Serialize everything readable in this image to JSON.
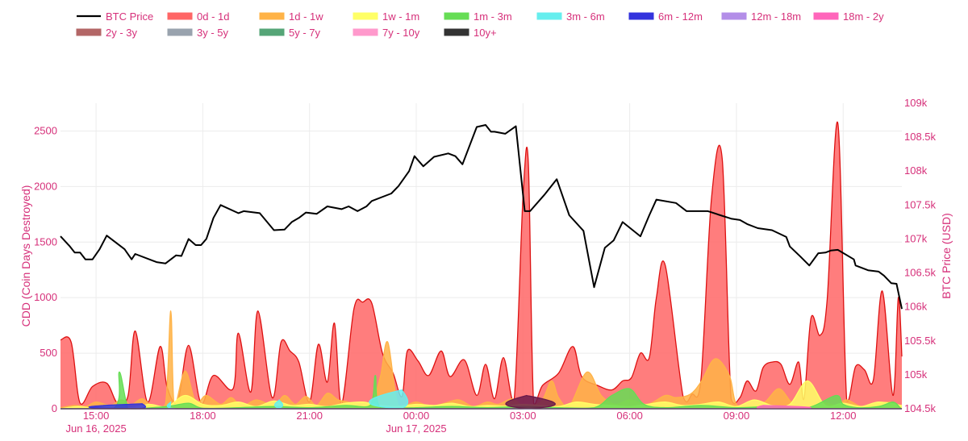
{
  "chart_data": {
    "type": "area",
    "left_axis": {
      "label": "CDD (Coin Days Destroyed)",
      "range": [
        0,
        2750
      ],
      "ticks": [
        "0",
        "500",
        "1000",
        "1500",
        "2000",
        "2500"
      ]
    },
    "right_axis": {
      "label": "BTC Price (USD)",
      "range": [
        104500,
        109000
      ],
      "ticks": [
        "104.5k",
        "105k",
        "105.5k",
        "106k",
        "106.5k",
        "107k",
        "107.5k",
        "108k",
        "108.5k",
        "109k"
      ]
    },
    "x_axis": {
      "range_hours": [
        14.0,
        37.65
      ],
      "ticks": [
        {
          "hour": 15,
          "label": "15:00",
          "sublabel": "Jun 16, 2025"
        },
        {
          "hour": 18,
          "label": "18:00",
          "sublabel": ""
        },
        {
          "hour": 21,
          "label": "21:00",
          "sublabel": ""
        },
        {
          "hour": 24,
          "label": "00:00",
          "sublabel": "Jun 17, 2025"
        },
        {
          "hour": 27,
          "label": "03:00",
          "sublabel": ""
        },
        {
          "hour": 30,
          "label": "06:00",
          "sublabel": ""
        },
        {
          "hour": 33,
          "label": "09:00",
          "sublabel": ""
        },
        {
          "hour": 36,
          "label": "12:00",
          "sublabel": ""
        }
      ]
    },
    "grid": true,
    "legend_position": "top",
    "legend": [
      {
        "name": "BTC Price",
        "color": "#000000",
        "kind": "line"
      },
      {
        "name": "0d - 1d",
        "color": "#ff6666",
        "kind": "area"
      },
      {
        "name": "1d - 1w",
        "color": "#ffb347",
        "kind": "area"
      },
      {
        "name": "1w - 1m",
        "color": "#ffff66",
        "kind": "area"
      },
      {
        "name": "1m - 3m",
        "color": "#66dd55",
        "kind": "area"
      },
      {
        "name": "3m - 6m",
        "color": "#66eeee",
        "kind": "area"
      },
      {
        "name": "6m - 12m",
        "color": "#3333dd",
        "kind": "area"
      },
      {
        "name": "12m - 18m",
        "color": "#b38ee8",
        "kind": "area"
      },
      {
        "name": "18m - 2y",
        "color": "#ff66bb",
        "kind": "area"
      },
      {
        "name": "2y - 3y",
        "color": "#b36666",
        "kind": "area"
      },
      {
        "name": "3y - 5y",
        "color": "#99a3ae",
        "kind": "area"
      },
      {
        "name": "5y - 7y",
        "color": "#55a577",
        "kind": "area"
      },
      {
        "name": "7y - 10y",
        "color": "#ff99cc",
        "kind": "area"
      },
      {
        "name": "10y+",
        "color": "#333333",
        "kind": "area"
      }
    ],
    "series": [
      {
        "name": "BTC Price",
        "axis": "right",
        "x": [
          14.0,
          14.25,
          14.4,
          14.55,
          14.7,
          14.9,
          15.1,
          15.3,
          15.8,
          16.0,
          16.1,
          16.6,
          16.7,
          16.95,
          17.25,
          17.4,
          17.6,
          17.8,
          17.95,
          18.1,
          18.3,
          18.5,
          19.0,
          19.15,
          19.6,
          20.0,
          20.3,
          20.5,
          20.7,
          20.9,
          21.2,
          21.5,
          21.9,
          22.1,
          22.35,
          22.6,
          22.75,
          23.3,
          23.5,
          23.8,
          23.95,
          24.2,
          24.5,
          24.9,
          25.1,
          25.3,
          25.7,
          25.95,
          26.1,
          26.2,
          26.5,
          26.8,
          27.05,
          27.2,
          27.6,
          27.95,
          28.3,
          28.7,
          29.0,
          29.3,
          29.55,
          29.8,
          30.3,
          30.55,
          30.75,
          31.3,
          31.6,
          32.2,
          32.55,
          32.85,
          33.1,
          33.3,
          33.6,
          34.0,
          34.4,
          34.5,
          34.8,
          35.05,
          35.3,
          35.5,
          35.65,
          35.85,
          36.3,
          36.35,
          36.7,
          37.0,
          37.15,
          37.35,
          37.5,
          37.65
        ],
        "values": [
          107040,
          106900,
          106800,
          106800,
          106700,
          106700,
          106850,
          107050,
          106850,
          106700,
          106780,
          106680,
          106660,
          106640,
          106760,
          106750,
          107000,
          106910,
          106910,
          107000,
          107310,
          107500,
          107380,
          107410,
          107380,
          107130,
          107140,
          107250,
          107310,
          107390,
          107370,
          107480,
          107440,
          107480,
          107410,
          107480,
          107560,
          107670,
          107780,
          108000,
          108220,
          108070,
          108210,
          108260,
          108220,
          108100,
          108650,
          108680,
          108580,
          108580,
          108550,
          108660,
          107410,
          107410,
          107650,
          107880,
          107350,
          107120,
          106290,
          106870,
          106980,
          107250,
          107040,
          107350,
          107580,
          107530,
          107410,
          107410,
          107350,
          107300,
          107280,
          107220,
          107160,
          107130,
          107030,
          106890,
          106740,
          106610,
          106790,
          106800,
          106830,
          106840,
          106700,
          106610,
          106540,
          106520,
          106460,
          106350,
          106340,
          105970
        ],
        "color": "#000000"
      },
      {
        "name": "0d - 1d",
        "axis": "left",
        "color": "#ff6666",
        "x": [
          14.0,
          14.3,
          14.55,
          14.9,
          15.3,
          15.6,
          15.9,
          16.1,
          16.45,
          16.8,
          17.0,
          17.3,
          17.6,
          17.95,
          18.3,
          18.85,
          19.0,
          19.35,
          19.55,
          19.95,
          20.2,
          20.45,
          20.7,
          21.0,
          21.25,
          21.5,
          21.7,
          21.9,
          22.25,
          22.5,
          22.75,
          23.05,
          23.35,
          23.6,
          23.75,
          24.05,
          24.35,
          24.7,
          24.95,
          25.35,
          25.7,
          25.95,
          26.2,
          26.45,
          26.75,
          27.0,
          27.15,
          27.3,
          27.55,
          28.0,
          28.4,
          28.65,
          29.1,
          29.5,
          29.8,
          30.05,
          30.3,
          30.55,
          30.75,
          31.0,
          31.5,
          31.75,
          32.0,
          32.3,
          32.6,
          32.85,
          33.1,
          33.3,
          33.55,
          33.75,
          34.0,
          34.25,
          34.5,
          34.75,
          34.9,
          35.1,
          35.35,
          35.55,
          35.85,
          36.1,
          36.35,
          36.6,
          36.85,
          37.1,
          37.4,
          37.55,
          37.65
        ],
        "values": [
          620,
          600,
          50,
          200,
          230,
          50,
          120,
          700,
          60,
          560,
          190,
          70,
          570,
          50,
          300,
          180,
          680,
          150,
          880,
          100,
          600,
          520,
          420,
          60,
          580,
          240,
          770,
          40,
          900,
          960,
          950,
          500,
          320,
          110,
          520,
          430,
          300,
          520,
          290,
          440,
          120,
          400,
          90,
          460,
          80,
          1900,
          2220,
          50,
          210,
          320,
          560,
          290,
          210,
          170,
          250,
          280,
          500,
          460,
          1000,
          1290,
          110,
          130,
          250,
          1900,
          2250,
          90,
          100,
          250,
          160,
          370,
          420,
          400,
          220,
          420,
          90,
          820,
          660,
          980,
          2570,
          80,
          380,
          350,
          260,
          1060,
          120,
          1000,
          470
        ]
      },
      {
        "name": "1d - 1w",
        "axis": "left",
        "color": "#ffb347",
        "x": [
          14.0,
          14.4,
          14.7,
          15.0,
          15.4,
          15.7,
          16.0,
          16.3,
          16.6,
          16.95,
          17.1,
          17.2,
          17.5,
          17.8,
          18.1,
          18.5,
          18.8,
          19.1,
          19.5,
          20.0,
          20.3,
          20.6,
          20.9,
          21.2,
          21.5,
          21.8,
          22.1,
          22.5,
          22.8,
          23.0,
          23.2,
          23.5,
          24.0,
          24.4,
          24.8,
          25.2,
          25.6,
          26.0,
          26.3,
          26.7,
          27.0,
          27.5,
          27.8,
          28.0,
          28.3,
          28.8,
          29.2,
          29.6,
          30.0,
          30.5,
          31.0,
          31.3,
          31.7,
          32.0,
          32.4,
          32.8,
          33.0,
          33.4,
          33.8,
          34.2,
          34.6,
          35.0,
          35.4,
          35.8,
          36.1,
          36.5,
          36.9,
          37.3,
          37.65
        ],
        "values": [
          10,
          30,
          20,
          60,
          30,
          80,
          40,
          90,
          20,
          40,
          880,
          20,
          340,
          60,
          120,
          40,
          100,
          20,
          80,
          30,
          120,
          40,
          110,
          30,
          140,
          80,
          60,
          20,
          100,
          300,
          600,
          30,
          60,
          20,
          50,
          80,
          20,
          60,
          40,
          90,
          30,
          60,
          250,
          100,
          20,
          330,
          120,
          40,
          80,
          40,
          120,
          100,
          130,
          240,
          450,
          300,
          40,
          20,
          60,
          180,
          40,
          20,
          60,
          30,
          80,
          20,
          40,
          60,
          20
        ]
      },
      {
        "name": "1w - 1m",
        "axis": "left",
        "color": "#ffff66",
        "x": [
          14.0,
          14.5,
          15.0,
          15.5,
          16.0,
          16.5,
          17.0,
          17.5,
          18.0,
          18.5,
          19.0,
          19.5,
          20.0,
          20.5,
          21.0,
          21.5,
          22.0,
          22.5,
          23.0,
          23.5,
          24.0,
          24.5,
          25.0,
          25.5,
          26.0,
          26.5,
          27.0,
          27.5,
          28.0,
          28.5,
          29.0,
          29.5,
          30.0,
          30.5,
          31.0,
          31.5,
          32.0,
          32.5,
          33.0,
          33.5,
          34.0,
          34.5,
          35.0,
          35.5,
          36.0,
          36.5,
          37.0,
          37.65
        ],
        "values": [
          0,
          20,
          5,
          30,
          10,
          40,
          20,
          120,
          40,
          30,
          60,
          20,
          70,
          30,
          40,
          20,
          50,
          60,
          30,
          20,
          40,
          30,
          50,
          20,
          30,
          25,
          40,
          30,
          20,
          60,
          40,
          30,
          20,
          40,
          60,
          30,
          40,
          60,
          20,
          80,
          30,
          40,
          250,
          30,
          50,
          20,
          60,
          30
        ]
      },
      {
        "name": "1m - 3m",
        "axis": "left",
        "color": "#66dd55",
        "x": [
          14.0,
          15.5,
          15.65,
          15.85,
          16.0,
          17.0,
          17.6,
          18.0,
          19.0,
          20.0,
          21.0,
          22.0,
          22.7,
          22.85,
          23.0,
          24.0,
          25.0,
          26.0,
          27.0,
          28.0,
          29.0,
          29.5,
          30.0,
          30.4,
          31.0,
          32.0,
          33.0,
          34.0,
          35.0,
          35.8,
          36.0,
          36.4,
          37.0,
          37.4,
          37.6,
          37.65
        ],
        "values": [
          0,
          5,
          330,
          60,
          0,
          20,
          50,
          5,
          10,
          20,
          10,
          30,
          30,
          300,
          10,
          10,
          20,
          10,
          20,
          10,
          10,
          120,
          180,
          40,
          10,
          30,
          10,
          20,
          10,
          120,
          40,
          10,
          20,
          60,
          10,
          0
        ]
      },
      {
        "name": "3m - 6m",
        "axis": "left",
        "color": "#66eeee",
        "x": [
          14.0,
          15.9,
          16.0,
          16.2,
          17.0,
          17.1,
          17.25,
          20.0,
          20.15,
          20.3,
          23.5,
          23.6,
          23.75,
          37.65
        ],
        "values": [
          0,
          0,
          0,
          0,
          0,
          60,
          0,
          0,
          80,
          0,
          0,
          170,
          0,
          0
        ]
      },
      {
        "name": "6m - 12m",
        "axis": "left",
        "color": "#3333dd",
        "x": [
          14.0,
          16.2,
          16.3,
          16.4,
          37.65
        ],
        "values": [
          0,
          0,
          45,
          0,
          0
        ]
      },
      {
        "name": "10y+",
        "axis": "left",
        "color": "#6a1a4a",
        "x": [
          14.0,
          26.9,
          27.1,
          27.35,
          37.65
        ],
        "values": [
          0,
          0,
          120,
          0,
          0
        ]
      },
      {
        "name": "18m - 2y",
        "axis": "left",
        "color": "#ff66bb",
        "x": [
          14.0,
          33.6,
          33.75,
          33.9,
          37.65
        ],
        "values": [
          0,
          0,
          30,
          0,
          0
        ]
      }
    ]
  }
}
